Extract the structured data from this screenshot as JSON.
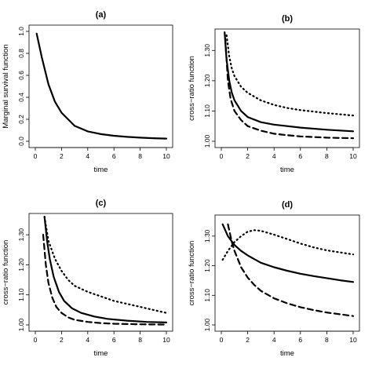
{
  "chart_data": [
    {
      "id": "a",
      "type": "line",
      "title": "(a)",
      "xlabel": "time",
      "ylabel": "Marginal survival function",
      "xlim": [
        0,
        10
      ],
      "ylim": [
        0,
        1.0
      ],
      "xticks": [
        "0",
        "2",
        "4",
        "6",
        "8",
        "10"
      ],
      "yticks": [
        "0.0",
        "0.2",
        "0.4",
        "0.6",
        "0.8",
        "1.0"
      ],
      "series": [
        {
          "style": "solid",
          "x": [
            0.1,
            0.5,
            1,
            1.5,
            2,
            3,
            4,
            5,
            6,
            7,
            8,
            9,
            10
          ],
          "y": [
            0.98,
            0.76,
            0.52,
            0.36,
            0.26,
            0.14,
            0.09,
            0.065,
            0.05,
            0.04,
            0.033,
            0.028,
            0.024
          ]
        }
      ]
    },
    {
      "id": "b",
      "type": "line",
      "title": "(b)",
      "xlabel": "time",
      "ylabel": "cross−ratio function",
      "xlim": [
        0,
        10
      ],
      "ylim": [
        1.0,
        1.35
      ],
      "xticks": [
        "0",
        "2",
        "4",
        "6",
        "8",
        "10"
      ],
      "yticks": [
        "1.00",
        "1.10",
        "1.20",
        "1.30"
      ],
      "series": [
        {
          "style": "solid",
          "x": [
            0.25,
            0.4,
            0.6,
            0.8,
            1,
            1.5,
            2,
            3,
            4,
            5,
            6,
            8,
            10
          ],
          "y": [
            1.36,
            1.27,
            1.2,
            1.16,
            1.135,
            1.1,
            1.08,
            1.063,
            1.055,
            1.05,
            1.045,
            1.038,
            1.033
          ]
        },
        {
          "style": "dotted",
          "x": [
            0.4,
            0.6,
            0.8,
            1,
            1.5,
            2,
            3,
            4,
            5,
            6,
            8,
            10
          ],
          "y": [
            1.35,
            1.28,
            1.24,
            1.215,
            1.18,
            1.16,
            1.135,
            1.12,
            1.11,
            1.103,
            1.093,
            1.085
          ]
        },
        {
          "style": "dashed",
          "x": [
            0.3,
            0.5,
            0.7,
            1,
            1.5,
            2,
            3,
            4,
            5,
            6,
            8,
            10
          ],
          "y": [
            1.34,
            1.2,
            1.14,
            1.1,
            1.07,
            1.05,
            1.035,
            1.025,
            1.02,
            1.016,
            1.012,
            1.01
          ]
        }
      ]
    },
    {
      "id": "c",
      "type": "line",
      "title": "(c)",
      "xlabel": "time",
      "ylabel": "cross−ratio function",
      "xlim": [
        0,
        10
      ],
      "ylim": [
        1.0,
        1.35
      ],
      "xticks": [
        "0",
        "2",
        "4",
        "6",
        "8",
        "10"
      ],
      "yticks": [
        "1.00",
        "1.10",
        "1.20",
        "1.30"
      ],
      "series": [
        {
          "style": "solid",
          "x": [
            0.7,
            0.9,
            1.1,
            1.4,
            1.8,
            2.2,
            2.8,
            3.5,
            4.5,
            5.5,
            7,
            8.5,
            10
          ],
          "y": [
            1.36,
            1.28,
            1.22,
            1.16,
            1.11,
            1.08,
            1.055,
            1.04,
            1.028,
            1.02,
            1.014,
            1.01,
            1.008
          ]
        },
        {
          "style": "dotted",
          "x": [
            0.7,
            1,
            1.5,
            2,
            2.5,
            3,
            4,
            5,
            6,
            7,
            8,
            9,
            10
          ],
          "y": [
            1.36,
            1.28,
            1.22,
            1.18,
            1.15,
            1.13,
            1.11,
            1.095,
            1.08,
            1.07,
            1.06,
            1.05,
            1.04
          ]
        },
        {
          "style": "dashed",
          "x": [
            0.6,
            0.8,
            1,
            1.3,
            1.6,
            2,
            2.5,
            3,
            4,
            5,
            6,
            8,
            10
          ],
          "y": [
            1.3,
            1.2,
            1.14,
            1.09,
            1.06,
            1.04,
            1.025,
            1.017,
            1.01,
            1.006,
            1.004,
            1.002,
            1.001
          ]
        }
      ]
    },
    {
      "id": "d",
      "type": "line",
      "title": "(d)",
      "xlabel": "time",
      "ylabel": "cross−ratio function",
      "xlim": [
        0,
        10
      ],
      "ylim": [
        1.0,
        1.35
      ],
      "xticks": [
        "0",
        "2",
        "4",
        "6",
        "8",
        "10"
      ],
      "yticks": [
        "1.00",
        "1.10",
        "1.20",
        "1.30"
      ],
      "series": [
        {
          "style": "solid",
          "x": [
            0.1,
            0.5,
            1,
            1.5,
            2,
            3,
            4,
            5,
            6,
            7,
            8,
            9,
            10
          ],
          "y": [
            1.34,
            1.3,
            1.27,
            1.25,
            1.235,
            1.21,
            1.195,
            1.183,
            1.173,
            1.165,
            1.158,
            1.151,
            1.145
          ]
        },
        {
          "style": "dotted",
          "x": [
            0.1,
            0.5,
            1,
            1.5,
            2,
            2.5,
            3,
            4,
            5,
            6,
            7,
            8,
            9,
            10
          ],
          "y": [
            1.22,
            1.25,
            1.28,
            1.3,
            1.315,
            1.32,
            1.318,
            1.305,
            1.29,
            1.275,
            1.262,
            1.252,
            1.245,
            1.238
          ]
        },
        {
          "style": "dashed",
          "x": [
            0.5,
            0.8,
            1,
            1.5,
            2,
            2.5,
            3,
            4,
            5,
            6,
            7,
            8,
            9,
            10
          ],
          "y": [
            1.34,
            1.28,
            1.25,
            1.195,
            1.16,
            1.135,
            1.115,
            1.09,
            1.073,
            1.06,
            1.05,
            1.042,
            1.036,
            1.03
          ]
        }
      ]
    }
  ]
}
